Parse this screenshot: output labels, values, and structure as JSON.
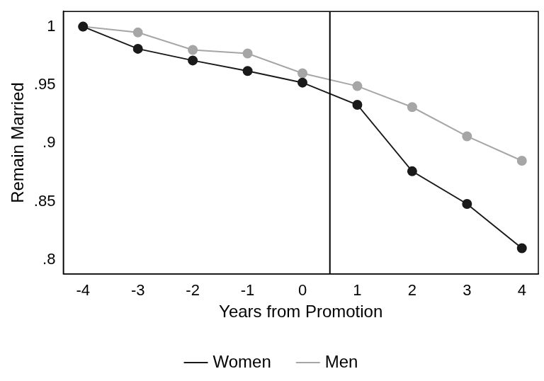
{
  "chart_data": {
    "type": "line",
    "x_label": "Years from Promotion",
    "y_label": "Remain Married",
    "x": [
      -4,
      -3,
      -2,
      -1,
      0,
      1,
      2,
      3,
      4
    ],
    "series": [
      {
        "name": "Women",
        "color": "#1a1a1a",
        "marker": "circle",
        "values": [
          1,
          0.981,
          0.971,
          0.962,
          0.952,
          0.933,
          0.876,
          0.848,
          0.81
        ]
      },
      {
        "name": "Men",
        "color": "#a6a6a6",
        "marker": "circle",
        "values": [
          1,
          0.995,
          0.98,
          0.977,
          0.96,
          0.949,
          0.931,
          0.906,
          0.885
        ]
      }
    ],
    "vline": 0.5,
    "xlim": [
      -4.36,
      4.3
    ],
    "xticks": [
      -4,
      -3,
      -2,
      -1,
      0,
      1,
      2,
      3,
      4
    ],
    "ylim": [
      0.788,
      1.013
    ],
    "yticks": [
      {
        "value": 0.8,
        "label": ".8"
      },
      {
        "value": 0.85,
        "label": ".85"
      },
      {
        "value": 0.9,
        "label": ".9"
      },
      {
        "value": 0.95,
        "label": ".95"
      },
      1
    ],
    "grid": false,
    "legend": "bottom"
  }
}
